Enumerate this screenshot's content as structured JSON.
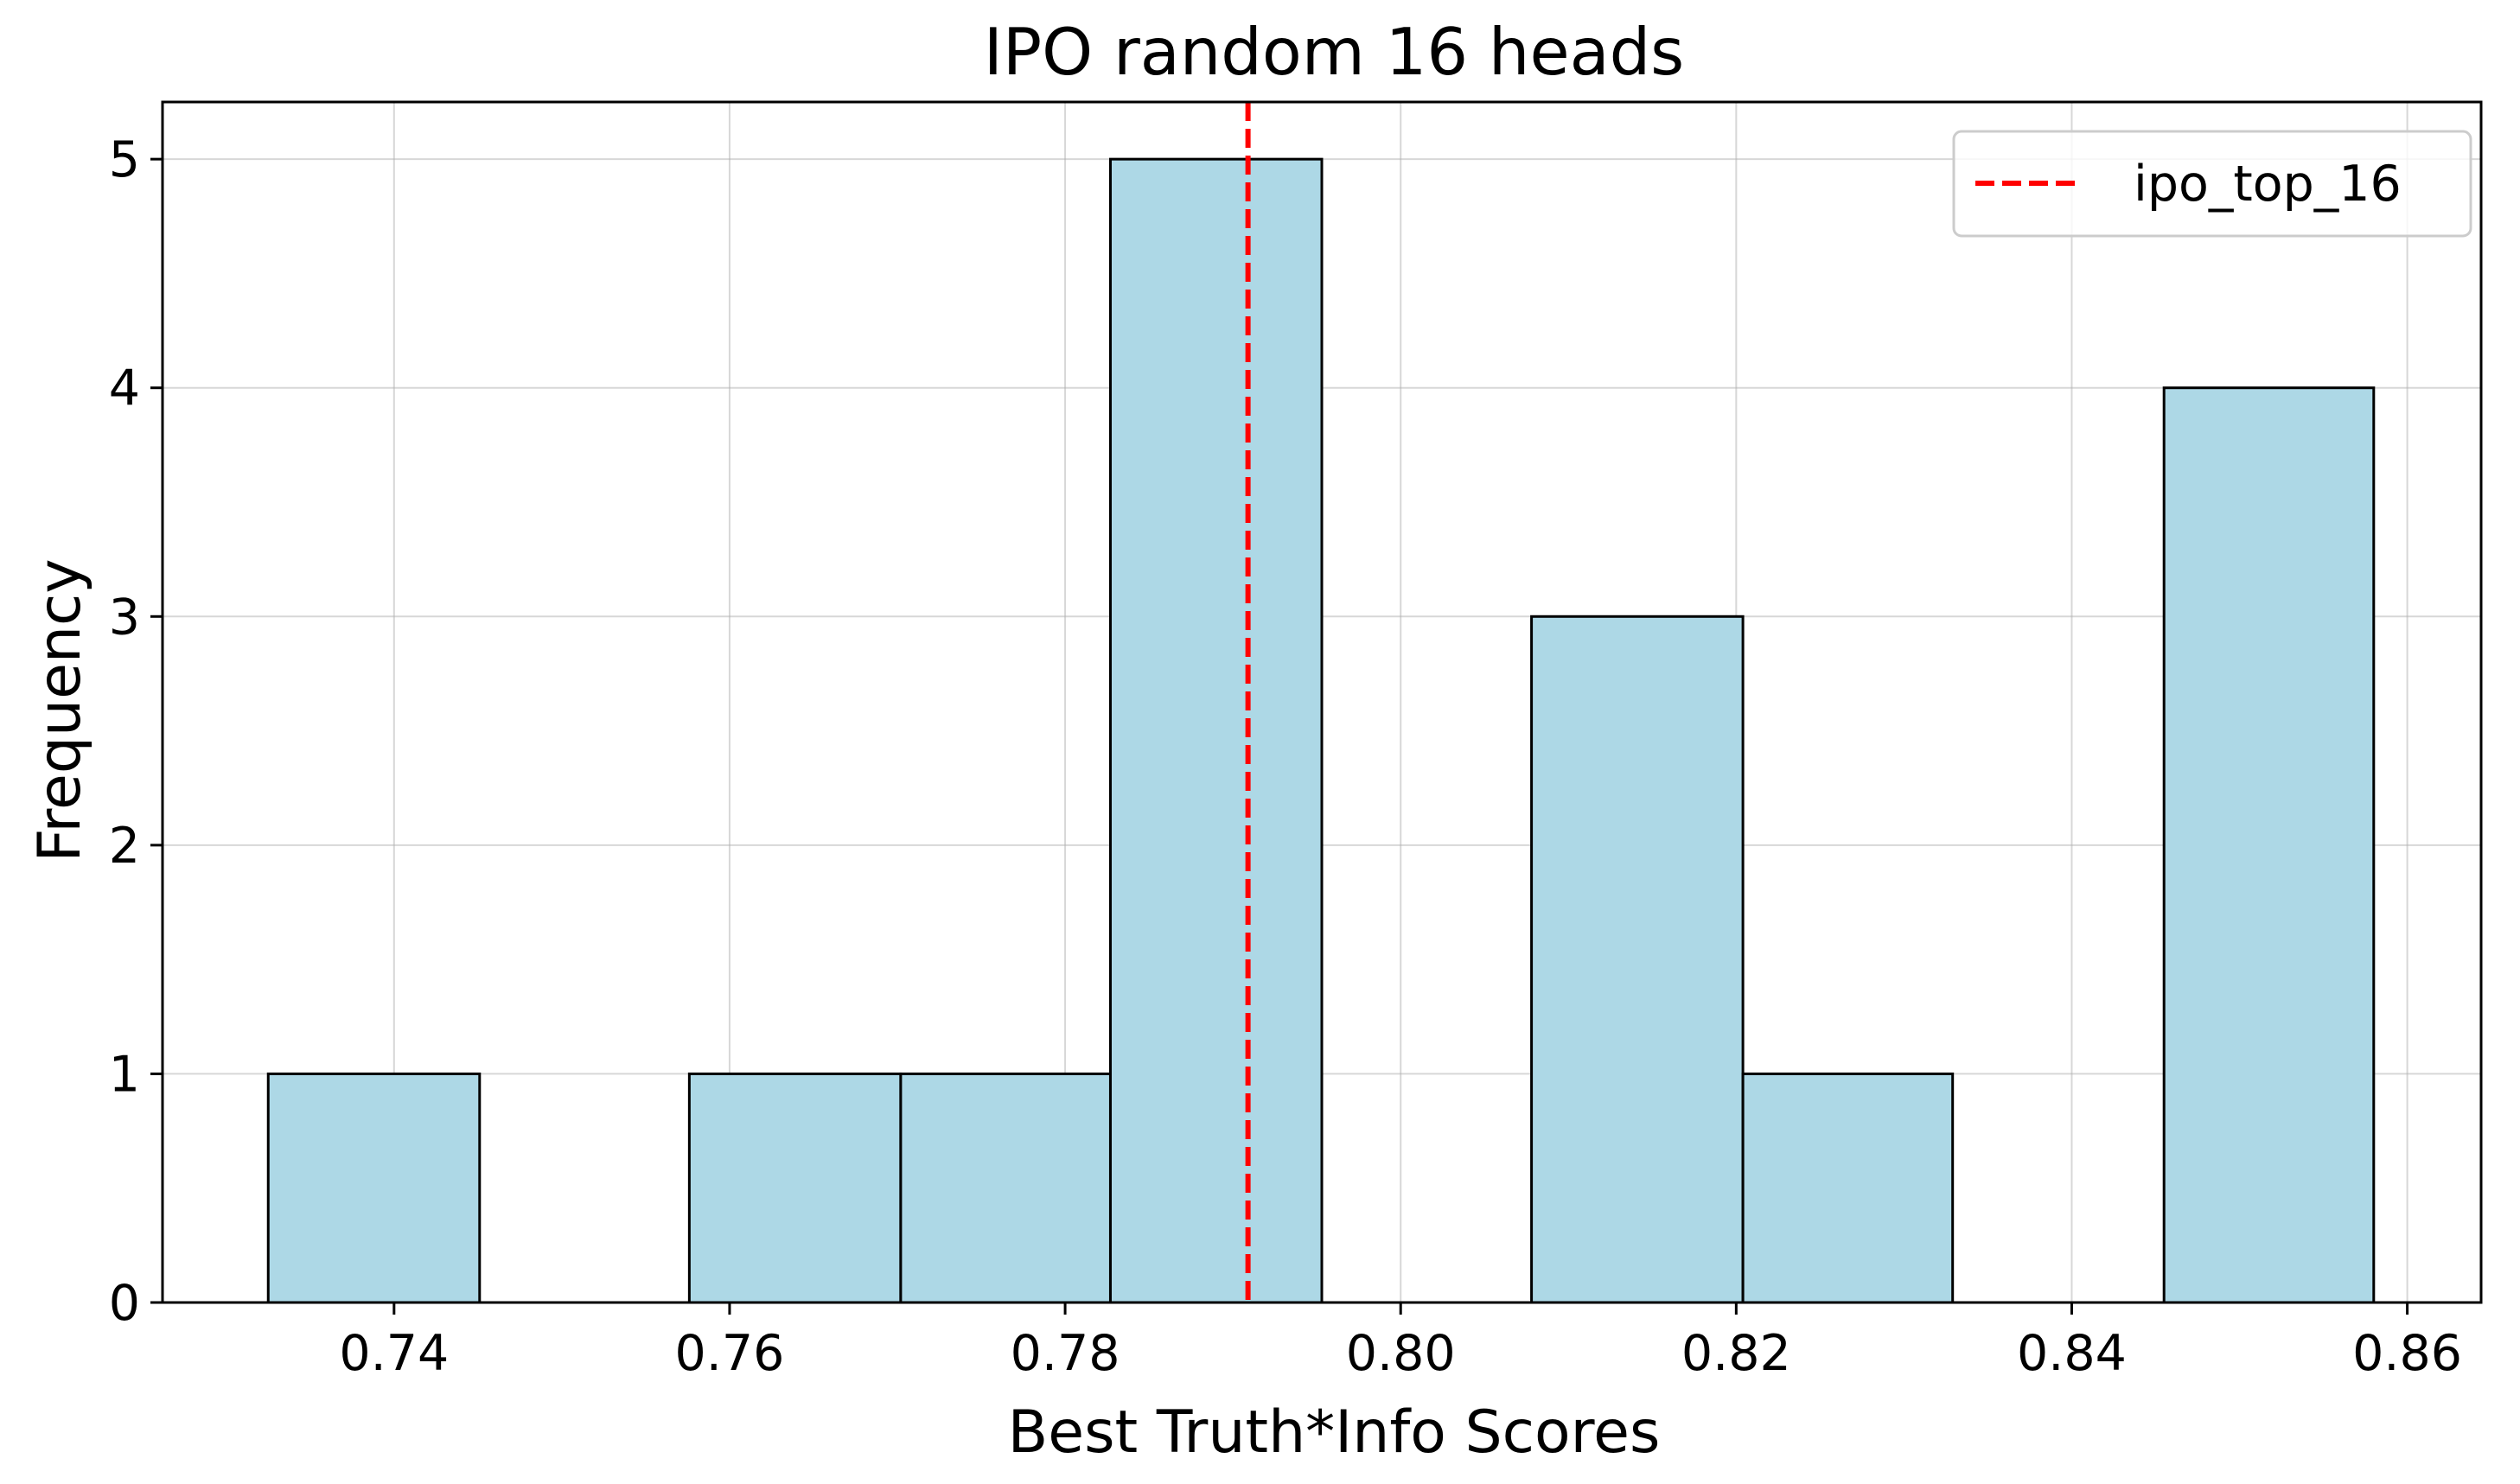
{
  "chart_data": {
    "type": "bar",
    "title": "IPO random 16 heads",
    "xlabel": "Best Truth*Info Scores",
    "ylabel": "Frequency",
    "xlim": [
      0.7262,
      0.8644
    ],
    "ylim": [
      0,
      5.25
    ],
    "xticks": [
      0.74,
      0.76,
      0.78,
      0.8,
      0.82,
      0.84,
      0.86
    ],
    "xtick_labels": [
      "0.74",
      "0.76",
      "0.78",
      "0.80",
      "0.82",
      "0.84",
      "0.86"
    ],
    "yticks": [
      0,
      1,
      2,
      3,
      4,
      5
    ],
    "ytick_labels": [
      "0",
      "1",
      "2",
      "3",
      "4",
      "5"
    ],
    "bin_edges": [
      0.7325,
      0.7451,
      0.7576,
      0.7702,
      0.7827,
      0.7953,
      0.8078,
      0.8204,
      0.8329,
      0.8455,
      0.858
    ],
    "values": [
      1,
      0,
      1,
      1,
      5,
      0,
      3,
      1,
      0,
      4
    ],
    "bar_color": "#add8e6",
    "edge_color": "#000000",
    "grid": true,
    "reference_lines": [
      {
        "name": "ipo_top_16",
        "x": 0.7909,
        "color": "#ff0000",
        "style": "dashed"
      }
    ],
    "legend": {
      "position": "top-right",
      "entries": [
        "ipo_top_16"
      ]
    }
  }
}
